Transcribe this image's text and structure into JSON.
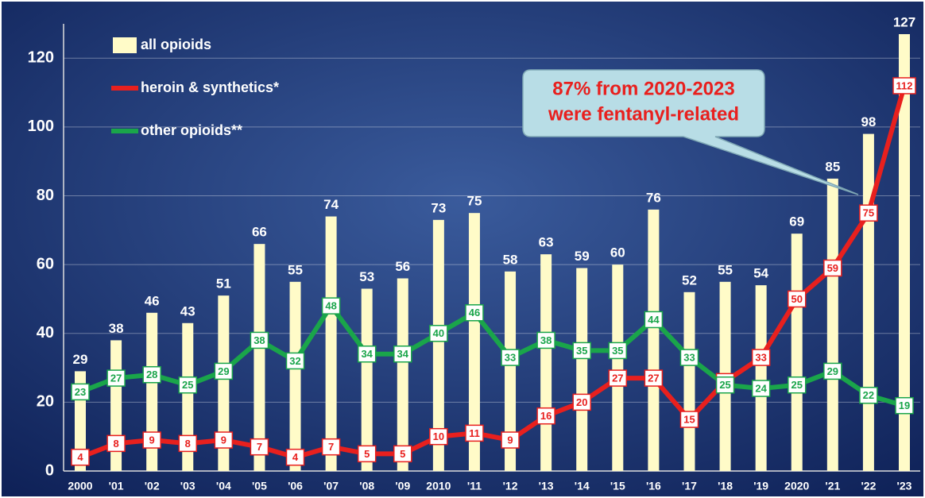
{
  "chart_data": {
    "type": "bar",
    "categories": [
      "2000",
      "'01",
      "'02",
      "'03",
      "'04",
      "'05",
      "'06",
      "'07",
      "'08",
      "'09",
      "2010",
      "'11",
      "'12",
      "'13",
      "'14",
      "'15",
      "'16",
      "'17",
      "'18",
      "'19",
      "2020",
      "'21",
      "'22",
      "'23"
    ],
    "series": [
      {
        "name": "all opioids",
        "type": "bar",
        "color": "#fffbc8",
        "values": [
          29,
          38,
          46,
          43,
          51,
          66,
          55,
          74,
          53,
          56,
          73,
          75,
          58,
          63,
          59,
          60,
          76,
          52,
          55,
          54,
          69,
          85,
          98,
          127
        ]
      },
      {
        "name": "heroin & synthetics*",
        "type": "line",
        "color": "#e8201e",
        "values": [
          4,
          8,
          9,
          8,
          9,
          7,
          4,
          7,
          5,
          5,
          10,
          11,
          9,
          16,
          20,
          27,
          27,
          15,
          26,
          33,
          50,
          59,
          75,
          112
        ]
      },
      {
        "name": "other opioids**",
        "type": "line",
        "color": "#1aa54a",
        "values": [
          23,
          27,
          28,
          25,
          29,
          38,
          32,
          48,
          34,
          34,
          40,
          46,
          33,
          38,
          35,
          35,
          44,
          33,
          25,
          24,
          25,
          29,
          22,
          19
        ]
      }
    ],
    "annotation": [
      "87% from 2020-2023",
      "were fentanyl-related"
    ],
    "ylim": [
      0,
      130
    ],
    "yticks": [
      0,
      20,
      40,
      60,
      80,
      100,
      120
    ],
    "grid": true,
    "legend": "upper left"
  }
}
